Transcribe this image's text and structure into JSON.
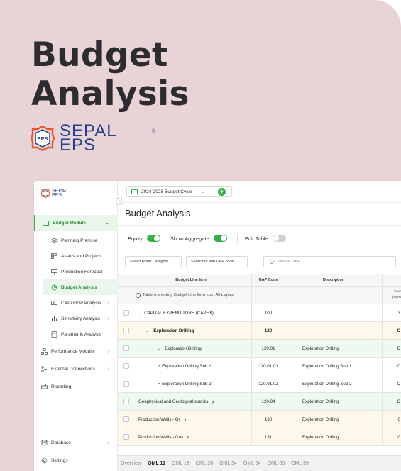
{
  "hero": {
    "title_line1": "Budget",
    "title_line2": "Analysis",
    "logo_line1": "SEPAL",
    "logo_line2": "EPS",
    "logo_badge": "EPS",
    "logo_reg": "®"
  },
  "colors": {
    "background": "#e8d3d6",
    "accent_green": "#34b04a",
    "brand_blue": "#243f8c",
    "row_yellow": "#fdf8e9",
    "row_green": "#eef9ef"
  },
  "sidebar": {
    "logo_line1": "SEPAL",
    "logo_line2": "EPS",
    "module": {
      "label": "Budget Module",
      "icon": "folder-icon"
    },
    "sub_items": [
      {
        "label": "Planning Premise",
        "icon": "layers-icon"
      },
      {
        "label": "Assets and Projects",
        "icon": "grid-icon"
      },
      {
        "label": "Production Forecast",
        "icon": "presentation-icon"
      },
      {
        "label": "Budget Analysis",
        "icon": "pie-chart-icon",
        "active": true
      },
      {
        "label": "Cash Flow Analysis",
        "icon": "cash-icon"
      },
      {
        "label": "Sensitivity Analysis",
        "icon": "bar-chart-icon"
      },
      {
        "label": "Parametric Analysis",
        "icon": "calculator-icon"
      }
    ],
    "items": [
      {
        "label": "Performance Module",
        "icon": "hierarchy-icon"
      },
      {
        "label": "External Connections",
        "icon": "connections-icon"
      },
      {
        "label": "Reporting",
        "icon": "printer-icon"
      }
    ],
    "footer": [
      {
        "label": "Database",
        "icon": "database-icon"
      },
      {
        "label": "Settings",
        "icon": "gear-icon"
      }
    ]
  },
  "header": {
    "cycle_label": "2024-2028 Budget Cycle",
    "page_title": "Budget Analysis"
  },
  "toggles": [
    {
      "label": "Equity",
      "on": true
    },
    {
      "label": "Show Aggregate",
      "on": true
    },
    {
      "label": "Edit Table",
      "on": false
    }
  ],
  "filters": {
    "asset_category": "Select Asset Category ⌄",
    "uap_code": "Search to add UAP code  ⌄",
    "search_placeholder": "Search Table"
  },
  "table": {
    "columns": [
      "Budget Line Item",
      "UAP Code",
      "Description"
    ],
    "info_text": "Table is showing Budget Line Item from All Layers",
    "col4_header_partial": "Sour",
    "col4_sub_partial": "(NGN",
    "rows": [
      {
        "item": "CAPITAL EXPENDITURE (CAPEX)",
        "prefix": "⌄",
        "uap": "100",
        "desc": "",
        "extra": "3"
      },
      {
        "item": "Exploration  Drilling",
        "prefix": "⌄",
        "uap": "120",
        "desc": "",
        "extra": "C"
      },
      {
        "item": "Exploration  Drilling",
        "prefix": "⌄",
        "uap": "120.01",
        "desc": "Exploration Drilling",
        "extra": "C"
      },
      {
        "item": "Exploration  Drilling Sub 1",
        "prefix": "•",
        "uap": "120.01.01",
        "desc": "Exploration Drilling Sub 1",
        "extra": "C"
      },
      {
        "item": "Exploration  Drilling Sub 2",
        "prefix": "•",
        "uap": "120.01.02",
        "desc": "Exploration Drilling Sub 2",
        "extra": "C"
      },
      {
        "item": "Geophysical and Geological studies",
        "prefix": "",
        "suffix": "›",
        "uap": "120.04",
        "desc": "Exploration Drilling",
        "extra": "C"
      },
      {
        "item": "Production Wells - Oil",
        "prefix": "",
        "suffix": "›",
        "uap": "130",
        "desc": "Exploration Drilling",
        "extra": "0"
      },
      {
        "item": "Production Wells - Gas",
        "prefix": "",
        "suffix": "›",
        "uap": "131",
        "desc": "Exploration Drilling",
        "extra": "0"
      }
    ]
  },
  "bottom_tabs": [
    "Overview",
    "OML 11",
    "OML 13",
    "OML 26",
    "OML 34",
    "OML 64",
    "OML 65",
    "OML 99"
  ]
}
